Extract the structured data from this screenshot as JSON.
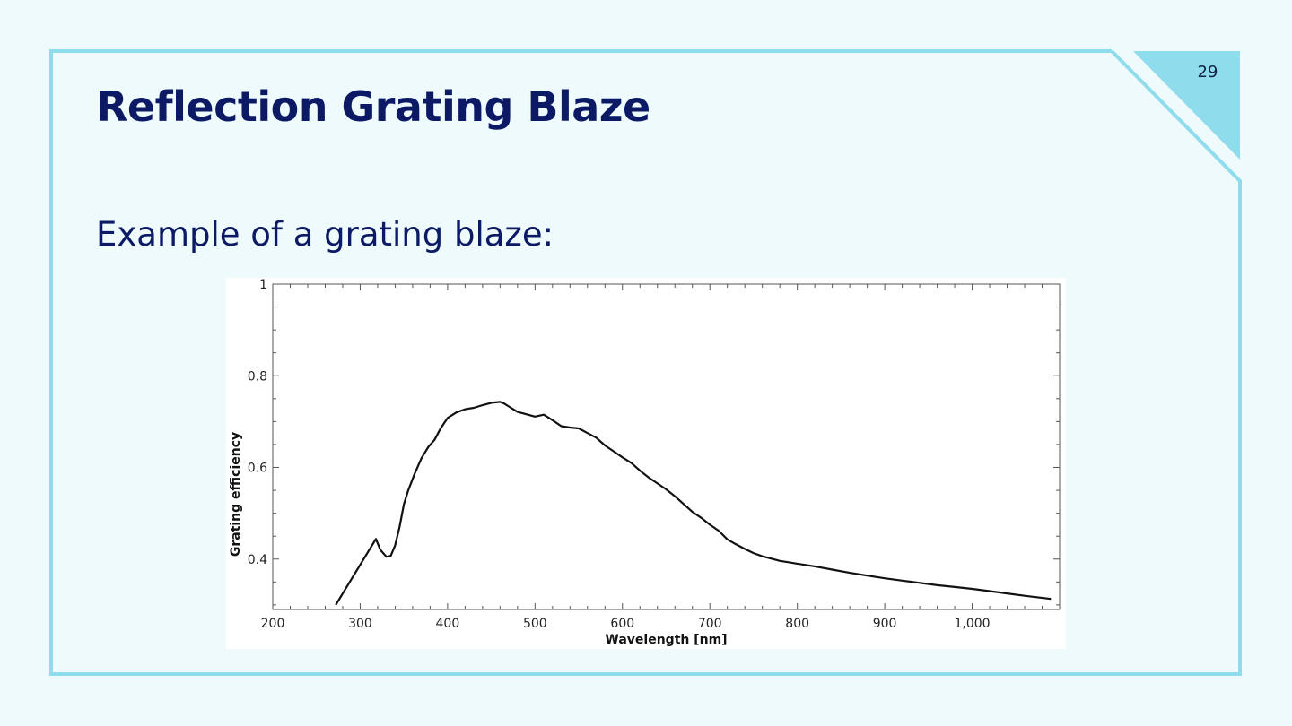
{
  "slide": {
    "title": "Reflection Grating Blaze",
    "page_number": "29",
    "subtitle": "Example of a grating blaze:",
    "colors": {
      "background": "#eefafc",
      "border": "#8fdcec",
      "corner": "#8fdcec",
      "title": "#0c1a66"
    }
  },
  "chart_data": {
    "type": "line",
    "title": "",
    "xlabel": "Wavelength [nm]",
    "ylabel": "Grating efficiency",
    "xlim": [
      200,
      1100
    ],
    "ylim": [
      0.29,
      1
    ],
    "x_ticks": [
      200,
      300,
      400,
      500,
      600,
      700,
      800,
      900,
      1000
    ],
    "x_tick_labels": [
      "200",
      "300",
      "400",
      "500",
      "600",
      "700",
      "800",
      "900",
      "1,000"
    ],
    "y_ticks": [
      0.4,
      0.6,
      0.8,
      1
    ],
    "y_tick_labels": [
      "0.4",
      "0.6",
      "0.8",
      "1"
    ],
    "grid": false,
    "series": [
      {
        "color": "#111111",
        "x": [
          272,
          318,
          323,
          330,
          335,
          340,
          345,
          350,
          355,
          362,
          370,
          378,
          385,
          392,
          400,
          410,
          420,
          430,
          440,
          450,
          460,
          465,
          470,
          480,
          490,
          500,
          510,
          520,
          530,
          540,
          550,
          560,
          570,
          580,
          590,
          600,
          610,
          620,
          630,
          640,
          650,
          660,
          670,
          680,
          690,
          700,
          710,
          720,
          730,
          740,
          750,
          760,
          770,
          780,
          790,
          800,
          820,
          840,
          860,
          880,
          900,
          920,
          940,
          960,
          980,
          1000,
          1020,
          1040,
          1060,
          1090
        ],
        "y": [
          0.3,
          0.444,
          0.42,
          0.405,
          0.407,
          0.43,
          0.47,
          0.52,
          0.55,
          0.585,
          0.62,
          0.645,
          0.66,
          0.685,
          0.708,
          0.72,
          0.727,
          0.73,
          0.736,
          0.741,
          0.743,
          0.739,
          0.733,
          0.721,
          0.716,
          0.711,
          0.715,
          0.703,
          0.69,
          0.687,
          0.685,
          0.675,
          0.665,
          0.648,
          0.635,
          0.622,
          0.61,
          0.593,
          0.578,
          0.565,
          0.552,
          0.537,
          0.52,
          0.503,
          0.49,
          0.475,
          0.462,
          0.443,
          0.432,
          0.422,
          0.413,
          0.406,
          0.401,
          0.396,
          0.393,
          0.39,
          0.384,
          0.377,
          0.37,
          0.364,
          0.358,
          0.353,
          0.348,
          0.343,
          0.339,
          0.335,
          0.33,
          0.325,
          0.32,
          0.313
        ]
      }
    ]
  }
}
